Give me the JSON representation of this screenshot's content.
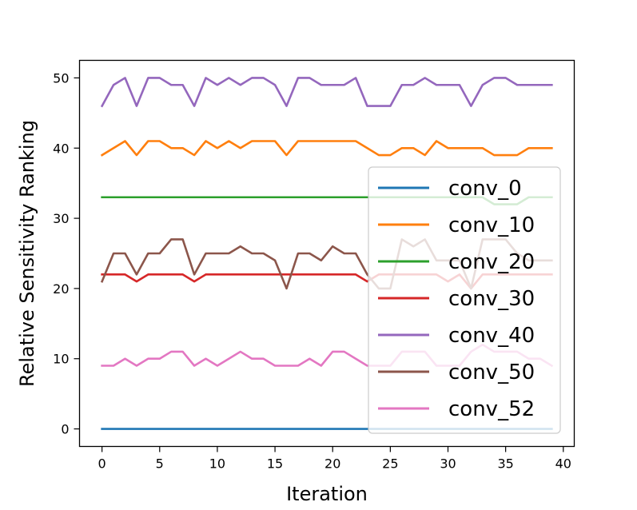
{
  "chart_data": {
    "type": "line",
    "title": "",
    "xlabel": "Iteration",
    "ylabel": "Relative Sensitivity Ranking",
    "xlim": [
      -1.95,
      40.95
    ],
    "ylim": [
      -2.5,
      52.5
    ],
    "xticks": [
      0,
      5,
      10,
      15,
      20,
      25,
      30,
      35,
      40
    ],
    "yticks": [
      0,
      10,
      20,
      30,
      40,
      50
    ],
    "grid": false,
    "legend_position": "lower-right",
    "x": [
      0,
      1,
      2,
      3,
      4,
      5,
      6,
      7,
      8,
      9,
      10,
      11,
      12,
      13,
      14,
      15,
      16,
      17,
      18,
      19,
      20,
      21,
      22,
      23,
      24,
      25,
      26,
      27,
      28,
      29,
      30,
      31,
      32,
      33,
      34,
      35,
      36,
      37,
      38,
      39
    ],
    "series": [
      {
        "name": "conv_0",
        "color": "#1f77b4",
        "values": [
          0,
          0,
          0,
          0,
          0,
          0,
          0,
          0,
          0,
          0,
          0,
          0,
          0,
          0,
          0,
          0,
          0,
          0,
          0,
          0,
          0,
          0,
          0,
          0,
          0,
          0,
          0,
          0,
          0,
          0,
          0,
          0,
          0,
          0,
          0,
          0,
          0,
          0,
          0,
          0
        ]
      },
      {
        "name": "conv_10",
        "color": "#ff7f0e",
        "values": [
          39,
          40,
          41,
          39,
          41,
          41,
          40,
          40,
          39,
          41,
          40,
          41,
          40,
          41,
          41,
          41,
          39,
          41,
          41,
          41,
          41,
          41,
          41,
          40,
          39,
          39,
          40,
          40,
          39,
          41,
          40,
          40,
          40,
          40,
          39,
          39,
          39,
          40,
          40,
          40
        ]
      },
      {
        "name": "conv_20",
        "color": "#2ca02c",
        "values": [
          33,
          33,
          33,
          33,
          33,
          33,
          33,
          33,
          33,
          33,
          33,
          33,
          33,
          33,
          33,
          33,
          33,
          33,
          33,
          33,
          33,
          33,
          33,
          33,
          33,
          33,
          33,
          33,
          33,
          33,
          33,
          33,
          33,
          33,
          32,
          32,
          32,
          33,
          33,
          33
        ]
      },
      {
        "name": "conv_30",
        "color": "#d62728",
        "values": [
          22,
          22,
          22,
          21,
          22,
          22,
          22,
          22,
          21,
          22,
          22,
          22,
          22,
          22,
          22,
          22,
          22,
          22,
          22,
          22,
          22,
          22,
          22,
          21,
          22,
          22,
          22,
          22,
          22,
          22,
          21,
          22,
          20,
          22,
          22,
          22,
          22,
          22,
          22,
          22
        ]
      },
      {
        "name": "conv_40",
        "color": "#9467bd",
        "values": [
          46,
          49,
          50,
          46,
          50,
          50,
          49,
          49,
          46,
          50,
          49,
          50,
          49,
          50,
          50,
          49,
          46,
          50,
          50,
          49,
          49,
          49,
          50,
          46,
          46,
          46,
          49,
          49,
          50,
          49,
          49,
          49,
          46,
          49,
          50,
          50,
          49,
          49,
          49,
          49
        ]
      },
      {
        "name": "conv_50",
        "color": "#8c564b",
        "values": [
          21,
          25,
          25,
          22,
          25,
          25,
          27,
          27,
          22,
          25,
          25,
          25,
          26,
          25,
          25,
          24,
          20,
          25,
          25,
          24,
          26,
          25,
          25,
          22,
          20,
          20,
          27,
          26,
          27,
          24,
          24,
          24,
          20,
          27,
          27,
          27,
          25,
          24,
          24,
          24
        ]
      },
      {
        "name": "conv_52",
        "color": "#e377c2",
        "values": [
          9,
          9,
          10,
          9,
          10,
          10,
          11,
          11,
          9,
          10,
          9,
          10,
          11,
          10,
          10,
          9,
          9,
          9,
          10,
          9,
          11,
          11,
          10,
          9,
          9,
          9,
          11,
          11,
          11,
          9,
          9,
          9,
          11,
          12,
          11,
          11,
          11,
          10,
          10,
          9
        ]
      }
    ]
  }
}
